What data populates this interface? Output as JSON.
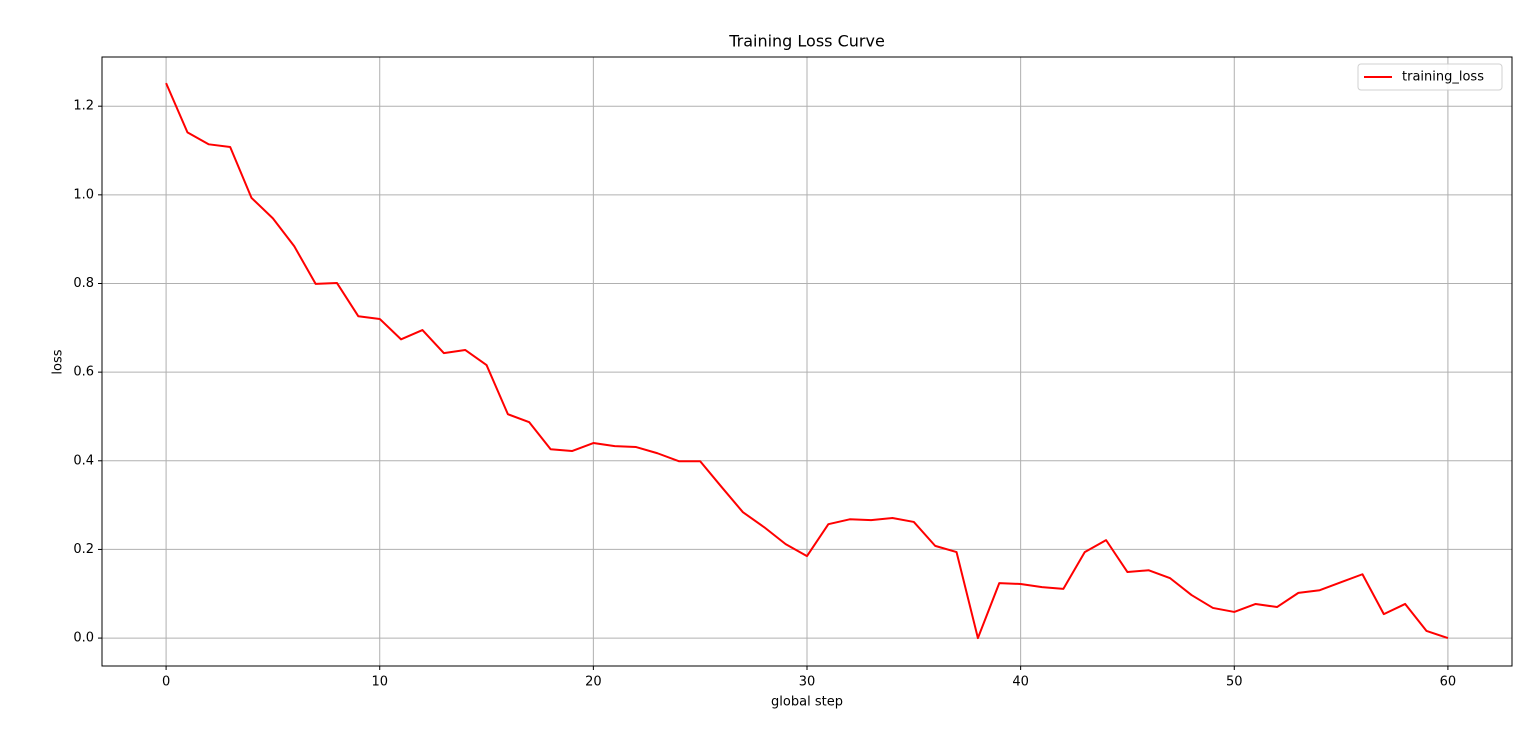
{
  "chart_data": {
    "type": "line",
    "title": "Training Loss Curve",
    "x_label": "global step",
    "y_label": "loss",
    "x": [
      0,
      1,
      2,
      3,
      4,
      5,
      6,
      7,
      8,
      9,
      10,
      11,
      12,
      13,
      14,
      15,
      16,
      17,
      18,
      19,
      20,
      21,
      22,
      23,
      24,
      25,
      26,
      27,
      28,
      29,
      30,
      31,
      32,
      33,
      34,
      35,
      36,
      37,
      38,
      39,
      40,
      41,
      42,
      43,
      44,
      45,
      46,
      47,
      48,
      49,
      50,
      51,
      52,
      53,
      54,
      55,
      56,
      57,
      58,
      59,
      60
    ],
    "series": [
      {
        "name": "training_loss",
        "color": "#ff0000",
        "values": [
          1.252,
          1.141,
          1.114,
          1.108,
          0.993,
          0.947,
          0.884,
          0.799,
          0.801,
          0.726,
          0.72,
          0.674,
          0.695,
          0.643,
          0.65,
          0.616,
          0.505,
          0.487,
          0.426,
          0.422,
          0.44,
          0.433,
          0.431,
          0.417,
          0.399,
          0.399,
          0.341,
          0.284,
          0.25,
          0.212,
          0.185,
          0.257,
          0.268,
          0.266,
          0.271,
          0.262,
          0.208,
          0.194,
          0.0,
          0.124,
          0.122,
          0.115,
          0.111,
          0.194,
          0.221,
          0.149,
          0.153,
          0.135,
          0.097,
          0.068,
          0.059,
          0.077,
          0.07,
          0.102,
          0.108,
          0.126,
          0.144,
          0.054,
          0.077,
          0.016,
          0.0
        ]
      }
    ],
    "xlim": [
      -3,
      63
    ],
    "xticks": [
      0,
      10,
      20,
      30,
      40,
      50,
      60
    ],
    "ylim": [
      -0.063,
      1.311
    ],
    "yticks": [
      {
        "value": 0,
        "label": "0.0"
      },
      0.2,
      0.4,
      0.6,
      0.8,
      {
        "value": 1,
        "label": "1.0"
      },
      1.2
    ],
    "grid": true,
    "legend": "upper right"
  }
}
